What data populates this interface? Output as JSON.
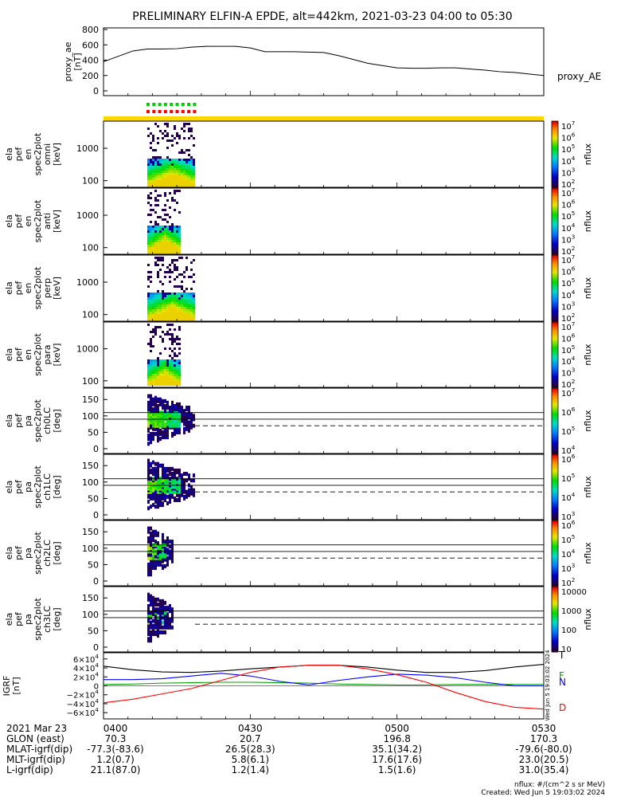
{
  "title": "PRELIMINARY ELFIN-A EPDE, alt=442km, 2021-03-23 04:00 to 05:30",
  "colors": {
    "axis": "#000000",
    "status_bar": "#ffd700",
    "grf_f": "#00a000",
    "grf_n": "#0000ff",
    "grf_d": "#ff0000",
    "grf_total": "#000000",
    "dotted_green": "#00d000",
    "dotted_red": "#ff0000"
  },
  "chart_data": [
    {
      "type": "line",
      "panel": "proxy_ae",
      "ylabel_lines": [
        "proxy_ae",
        "[nT]"
      ],
      "legend": "proxy_AE",
      "ylim": [
        0,
        800
      ],
      "yticks": [
        "800",
        "600",
        "400",
        "200",
        "0"
      ],
      "x": [
        0,
        3,
        6,
        9,
        12,
        15,
        18,
        21,
        24,
        27,
        30,
        33,
        36,
        39,
        42,
        45,
        48,
        51,
        54,
        57,
        60,
        63,
        66,
        69,
        72,
        75,
        78,
        81,
        84,
        87,
        90
      ],
      "values": [
        380,
        450,
        520,
        545,
        545,
        550,
        570,
        580,
        580,
        580,
        560,
        510,
        510,
        510,
        505,
        500,
        460,
        410,
        360,
        330,
        300,
        295,
        295,
        300,
        300,
        285,
        270,
        250,
        240,
        220,
        200
      ]
    },
    {
      "type": "heatmap",
      "panel": "en_omni",
      "ylabel_lines": [
        "ela",
        "pef",
        "en",
        "spec2plot",
        "omni",
        "[keV]"
      ],
      "yticks": [
        "1000",
        "100"
      ],
      "cbar_ticks": [
        "10^7",
        "10^6",
        "10^5",
        "10^4",
        "10^3",
        "10^2"
      ],
      "cbar_label": "nflux",
      "activity_min": [
        10,
        21
      ]
    },
    {
      "type": "heatmap",
      "panel": "en_anti",
      "ylabel_lines": [
        "ela",
        "pef",
        "en",
        "spec2plot",
        "anti",
        "[keV]"
      ],
      "yticks": [
        "1000",
        "100"
      ],
      "cbar_ticks": [
        "10^7",
        "10^6",
        "10^5",
        "10^4",
        "10^3",
        "10^2"
      ],
      "cbar_label": "nflux",
      "activity_min": [
        10,
        17
      ]
    },
    {
      "type": "heatmap",
      "panel": "en_perp",
      "ylabel_lines": [
        "ela",
        "pef",
        "en",
        "spec2plot",
        "perp",
        "[keV]"
      ],
      "yticks": [
        "1000",
        "100"
      ],
      "cbar_ticks": [
        "10^7",
        "10^6",
        "10^5",
        "10^4",
        "10^3",
        "10^2"
      ],
      "cbar_label": "nflux",
      "activity_min": [
        10,
        21
      ]
    },
    {
      "type": "heatmap",
      "panel": "en_para",
      "ylabel_lines": [
        "ela",
        "pef",
        "en",
        "spec2plot",
        "para",
        "[keV]"
      ],
      "yticks": [
        "1000",
        "100"
      ],
      "cbar_ticks": [
        "10^7",
        "10^6",
        "10^5",
        "10^4",
        "10^3",
        "10^2"
      ],
      "cbar_label": "nflux",
      "activity_min": [
        10,
        17
      ]
    },
    {
      "type": "heatmap",
      "panel": "pa_ch0",
      "ylabel_lines": [
        "ela",
        "pef",
        "pa",
        "spec2plot",
        "ch0LC",
        "[deg]"
      ],
      "yticks": [
        "150",
        "100",
        "50",
        "0"
      ],
      "ylim": [
        0,
        180
      ],
      "cbar_ticks": [
        "10^7",
        "10^6",
        "10^5",
        "10^4"
      ],
      "cbar_label": "nflux"
    },
    {
      "type": "heatmap",
      "panel": "pa_ch1",
      "ylabel_lines": [
        "ela",
        "pef",
        "pa",
        "spec2plot",
        "ch1LC",
        "[deg]"
      ],
      "yticks": [
        "150",
        "100",
        "50",
        "0"
      ],
      "ylim": [
        0,
        180
      ],
      "cbar_ticks": [
        "10^6",
        "10^5",
        "10^4",
        "10^3"
      ],
      "cbar_label": "nflux"
    },
    {
      "type": "heatmap",
      "panel": "pa_ch2",
      "ylabel_lines": [
        "ela",
        "pef",
        "pa",
        "spec2plot",
        "ch2LC",
        "[deg]"
      ],
      "yticks": [
        "150",
        "100",
        "50",
        "0"
      ],
      "ylim": [
        0,
        180
      ],
      "cbar_ticks": [
        "10^6",
        "10^5",
        "10^4",
        "10^3",
        "10^2"
      ],
      "cbar_label": "nflux"
    },
    {
      "type": "heatmap",
      "panel": "pa_ch3",
      "ylabel_lines": [
        "ela",
        "pef",
        "pa",
        "spec2plot",
        "ch3LC",
        "[deg]"
      ],
      "yticks": [
        "150",
        "100",
        "50",
        "0"
      ],
      "ylim": [
        0,
        180
      ],
      "cbar_ticks": [
        "10000",
        "1000",
        "100",
        "10"
      ],
      "cbar_label": "nflux"
    },
    {
      "type": "line",
      "panel": "igrf",
      "ylabel_lines": [
        "IGRF",
        "[nT]"
      ],
      "ylim": [
        -65000,
        65000
      ],
      "yticks": [
        "6×10^4",
        "4×10^4",
        "2×10^4",
        "0",
        "−2×10^4",
        "−4×10^4",
        "−6×10^4"
      ],
      "legend": [
        "T",
        "F",
        "N",
        "D"
      ],
      "x": [
        0,
        6,
        12,
        18,
        24,
        30,
        36,
        42,
        48,
        54,
        60,
        66,
        72,
        78,
        84,
        90
      ],
      "series": [
        {
          "name": "T",
          "values": [
            44000,
            36000,
            31000,
            30000,
            33000,
            38000,
            42000,
            46000,
            46000,
            42000,
            35000,
            30000,
            30000,
            34000,
            42000,
            48000
          ]
        },
        {
          "name": "F",
          "values": [
            3000,
            4000,
            6000,
            7000,
            8000,
            8000,
            7000,
            6000,
            4000,
            3000,
            2000,
            2000,
            3000,
            3000,
            3000,
            3000
          ]
        },
        {
          "name": "N",
          "values": [
            14000,
            14000,
            16000,
            22000,
            28000,
            22000,
            10000,
            2000,
            12000,
            20000,
            26000,
            24000,
            18000,
            8000,
            0,
            0
          ]
        },
        {
          "name": "D",
          "values": [
            -38000,
            -30000,
            -18000,
            -6000,
            12000,
            30000,
            42000,
            46000,
            46000,
            38000,
            25000,
            8000,
            -15000,
            -35000,
            -48000,
            -52000
          ]
        }
      ]
    }
  ],
  "xaxis": {
    "ticks": [
      "0400",
      "0430",
      "0500",
      "0530"
    ],
    "rows": [
      {
        "label": "2021 Mar 23",
        "values": [
          "0400",
          "0430",
          "0500",
          "0530"
        ]
      },
      {
        "label": "GLON (east)",
        "values": [
          "70.3",
          "20.7",
          "196.8",
          "170.3"
        ]
      },
      {
        "label": "MLAT-igrf(dip)",
        "values": [
          "-77.3(-83.6)",
          "26.5(28.3)",
          "35.1(34.2)",
          "-79.6(-80.0)"
        ]
      },
      {
        "label": "MLT-igrf(dip)",
        "values": [
          "1.2(0.7)",
          "5.8(6.1)",
          "17.6(17.6)",
          "23.0(20.5)"
        ]
      },
      {
        "label": "L-igrf(dip)",
        "values": [
          "21.1(87.0)",
          "1.2(1.4)",
          "1.5(1.6)",
          "31.0(35.4)"
        ]
      }
    ]
  },
  "footer": {
    "nflux": "nflux: #/(cm^2 s sr MeV)",
    "created": "Created: Wed Jun  5 19:03:02 2024",
    "side_stamp": "Wed Jun  5 19:03:02 2024"
  }
}
